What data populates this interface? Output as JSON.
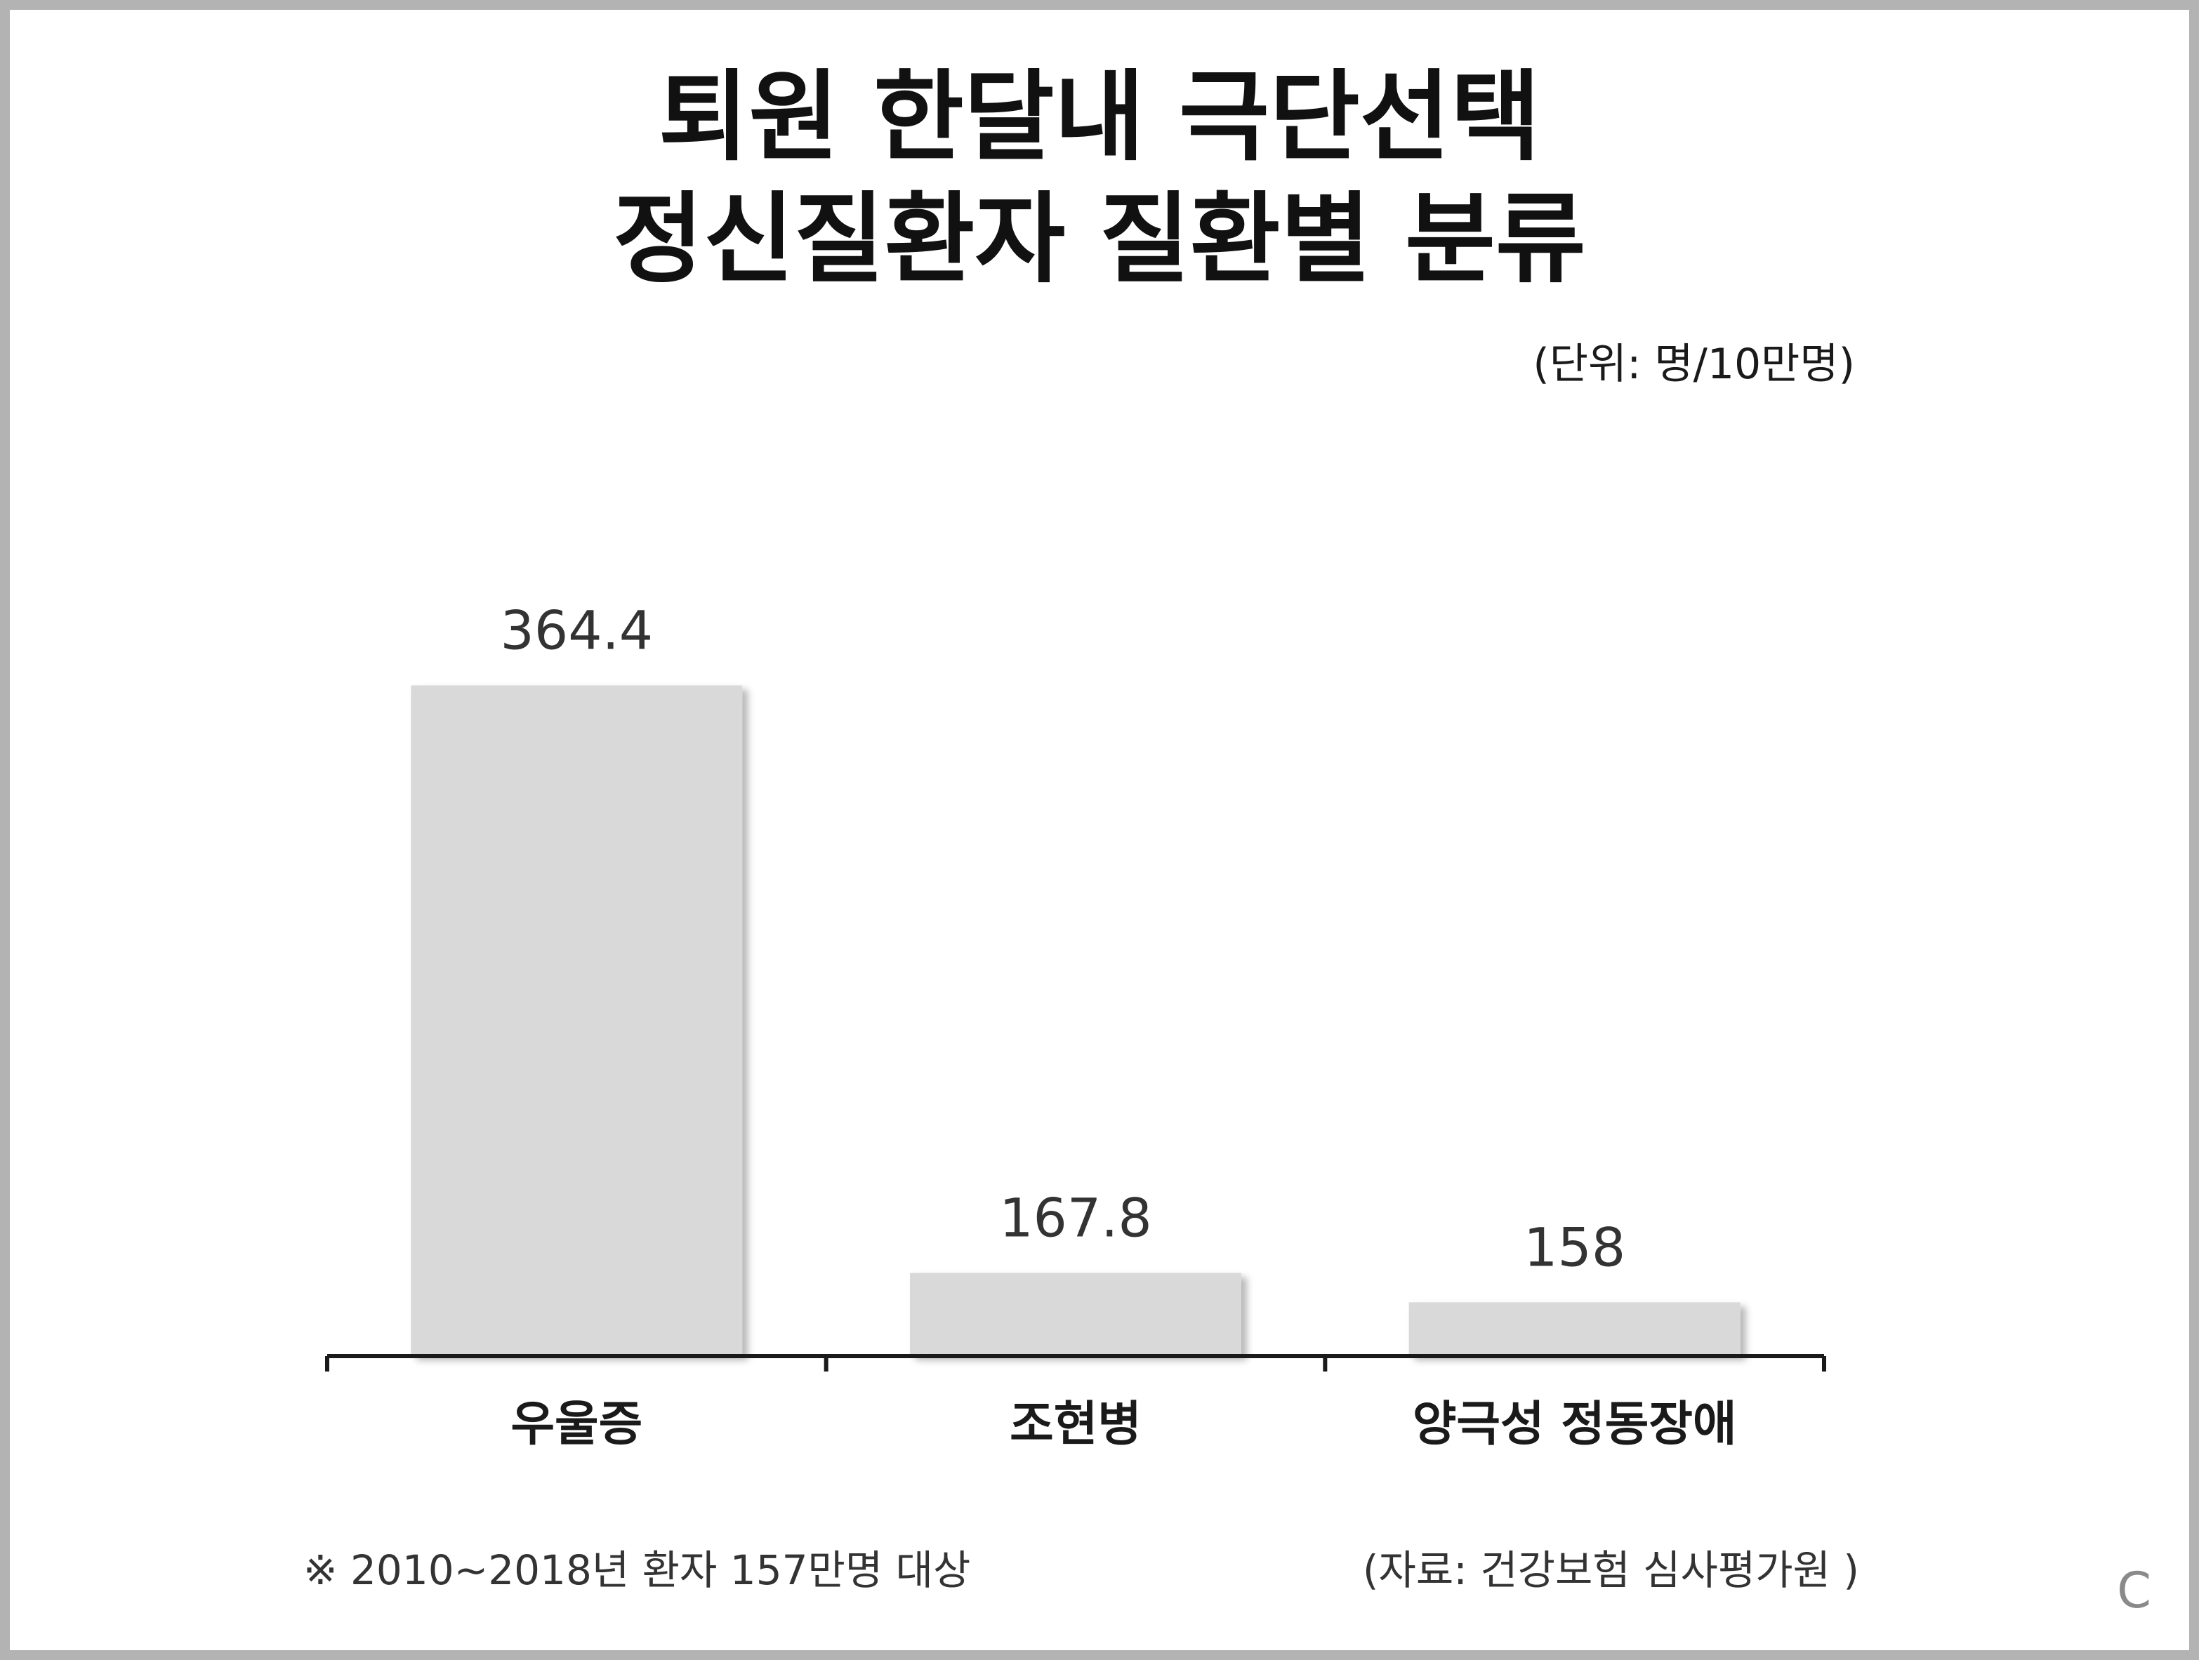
{
  "title_line1": "퇴원 한달내 극단선택",
  "title_line2": "정신질환자 질환별 분류",
  "unit": "(단위: 명/10만명)",
  "footnote": "※ 2010~2018년 환자 157만명 대상",
  "source": "(자료: 건강보험 심사평가원 )",
  "corner_mark": "C",
  "colors": {
    "bar": "#d9d9d9",
    "axis": "#1a1a1a",
    "text": "#333333",
    "frame": "#b3b3b3"
  },
  "chart_data": {
    "type": "bar",
    "categories": [
      "우울증",
      "조현병",
      "양극성 정동장애"
    ],
    "values": [
      364.4,
      167.8,
      158
    ],
    "data_labels": [
      "364.4",
      "167.8",
      "158"
    ],
    "ylim": [
      140,
      380
    ],
    "grid": false
  }
}
